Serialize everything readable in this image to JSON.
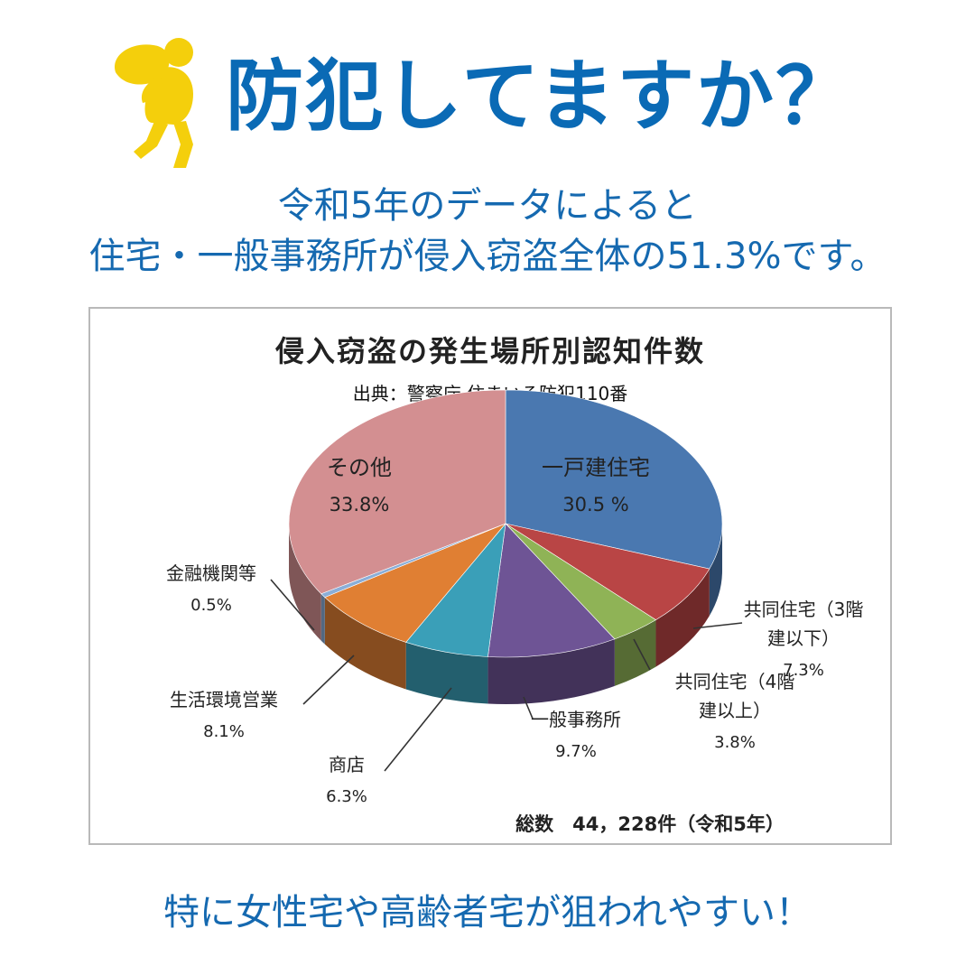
{
  "header": {
    "title": "防犯してますか？",
    "icon": "burglar-icon",
    "icon_color": "#f4cf0c",
    "title_color": "#0a6ab5"
  },
  "intro": {
    "line1": "令和5年のデータによると",
    "line2": "住宅・一般事務所が侵入窃盗全体の51.3%です。"
  },
  "chart_data": {
    "type": "pie",
    "title": "侵入窃盗の発生場所別認知件数",
    "source": "出典：警察庁 住まいる防犯110番",
    "total_label": "総数　44，228件（令和5年）",
    "slices": [
      {
        "name": "一戸建住宅",
        "value": 30.5,
        "value_label": "30.5 %",
        "color": "#4a78b0"
      },
      {
        "name": "共同住宅（3階建以下）",
        "name_lines": [
          "共同住宅（3階",
          "建以下）"
        ],
        "value": 7.3,
        "value_label": "7.3%",
        "color": "#b94545"
      },
      {
        "name": "共同住宅（4階建以上）",
        "name_lines": [
          "共同住宅（4階",
          "建以上）"
        ],
        "value": 3.8,
        "value_label": "3.8%",
        "color": "#8fb356"
      },
      {
        "name": "一般事務所",
        "name_lines": [
          "一般事務所"
        ],
        "value": 9.7,
        "value_label": "9.7%",
        "color": "#6e5495"
      },
      {
        "name": "商店",
        "name_lines": [
          "商店"
        ],
        "value": 6.3,
        "value_label": "6.3%",
        "color": "#3a9fb8"
      },
      {
        "name": "生活環境営業",
        "name_lines": [
          "生活環境営業"
        ],
        "value": 8.1,
        "value_label": "8.1%",
        "color": "#e07f33"
      },
      {
        "name": "金融機関等",
        "name_lines": [
          "金融機関等"
        ],
        "value": 0.5,
        "value_label": "0.5%",
        "color": "#8aaed8"
      },
      {
        "name": "その他",
        "value": 33.8,
        "value_label": "33.8%",
        "color": "#d38f91"
      }
    ]
  },
  "footer": {
    "text": "特に女性宅や高齢者宅が狙われやすい！"
  }
}
